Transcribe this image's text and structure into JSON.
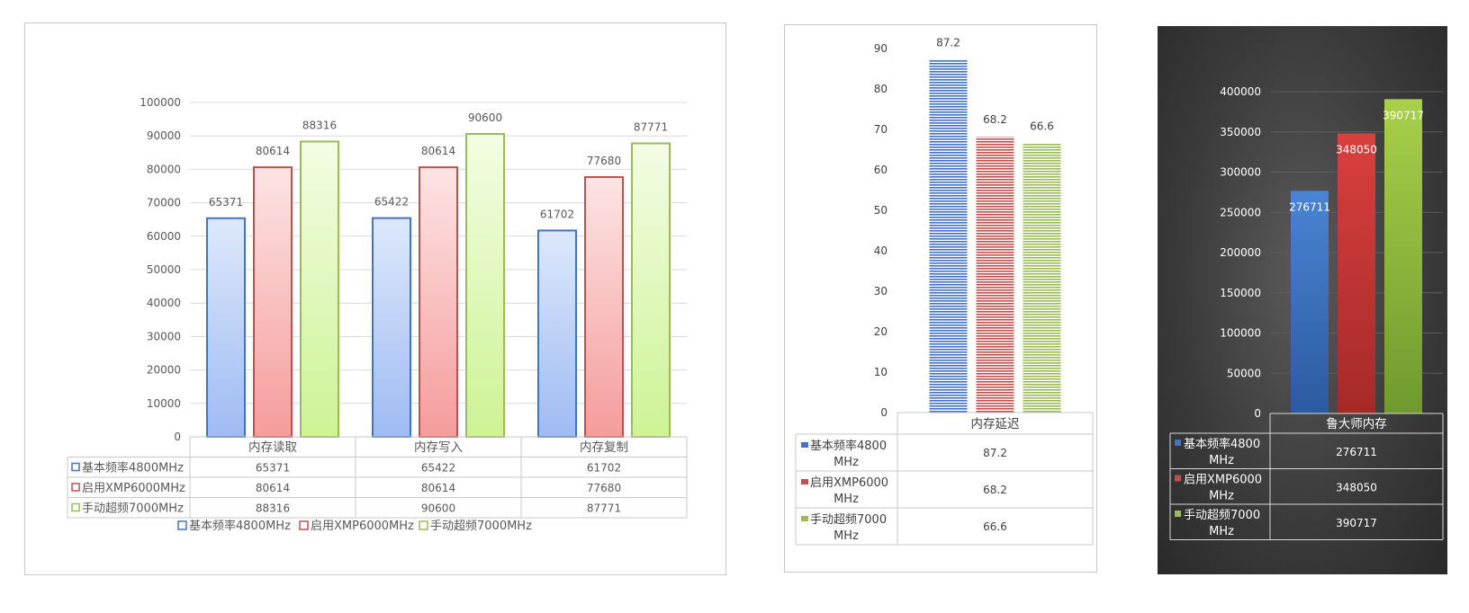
{
  "colors": {
    "blue": "#4472c4",
    "red": "#c0504d",
    "green": "#9bbb59",
    "grid_light": "#d9d9d9",
    "dark_text": "#ffffff"
  },
  "chart_data": [
    {
      "type": "bar",
      "categories": [
        "内存读取",
        "内存写入",
        "内存复制"
      ],
      "series": [
        {
          "name": "基本频率4800MHz",
          "values": [
            65371,
            65422,
            61702
          ]
        },
        {
          "name": "启用XMP6000MHz",
          "values": [
            80614,
            80614,
            77680
          ]
        },
        {
          "name": "手动超频7000MHz",
          "values": [
            88316,
            90600,
            87771
          ]
        }
      ],
      "yticks": [
        "0",
        "10000",
        "20000",
        "30000",
        "40000",
        "50000",
        "60000",
        "70000",
        "80000",
        "90000",
        "100000"
      ],
      "ylim": [
        0,
        100000
      ],
      "data_table": true,
      "legend": "bottom",
      "grid": true
    },
    {
      "type": "bar",
      "categories": [
        "内存延迟"
      ],
      "series": [
        {
          "name": "基本频率4800MHz",
          "values": [
            87.2
          ]
        },
        {
          "name": "启用XMP6000MHz",
          "values": [
            68.2
          ]
        },
        {
          "name": "手动超频7000MHz",
          "values": [
            66.6
          ]
        }
      ],
      "yticks": [
        "0",
        "10",
        "20",
        "30",
        "40",
        "50",
        "60",
        "70",
        "80",
        "90"
      ],
      "ylim": [
        0,
        90
      ],
      "data_table": true,
      "grid": false
    },
    {
      "type": "bar",
      "categories": [
        "鲁大师内存"
      ],
      "series": [
        {
          "name": "基本频率4800MHz",
          "values": [
            276711
          ]
        },
        {
          "name": "启用XMP6000MHz",
          "values": [
            348050
          ]
        },
        {
          "name": "手动超频7000MHz",
          "values": [
            390717
          ]
        }
      ],
      "yticks": [
        "0",
        "50000",
        "100000",
        "150000",
        "200000",
        "250000",
        "300000",
        "350000",
        "400000"
      ],
      "ylim": [
        0,
        400000
      ],
      "data_table": true,
      "grid": true,
      "theme": "dark"
    }
  ],
  "table_labels": {
    "chart1": [
      "基本频率4800MHz",
      "启用XMP6000MHz",
      "手动超频7000MHz"
    ],
    "chart2": [
      [
        "基本频率4800",
        "MHz"
      ],
      [
        "启用XMP6000",
        "MHz"
      ],
      [
        "手动超频7000",
        "MHz"
      ]
    ],
    "chart3": [
      [
        "基本频率4800",
        "MHz"
      ],
      [
        "启用XMP6000",
        "MHz"
      ],
      [
        "手动超频7000",
        "MHz"
      ]
    ]
  },
  "legend_labels": [
    "基本频率4800MHz",
    "启用XMP6000MHz",
    "手动超频7000MHz"
  ]
}
